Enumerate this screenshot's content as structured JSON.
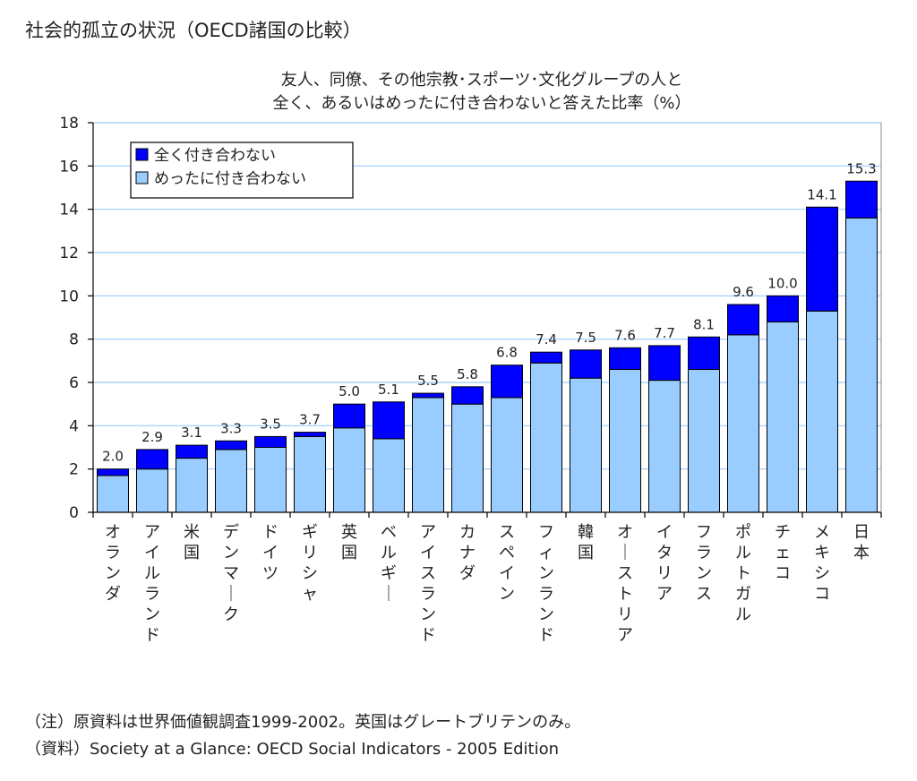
{
  "page": {
    "title": "社会的孤立の状況（OECD諸国の比較）",
    "notes": [
      "（注）原資料は世界価値観調査1999-2002。英国はグレートブリテンのみ。",
      "（資料）Society at a Glance: OECD Social Indicators - 2005 Edition"
    ]
  },
  "chart_data": {
    "type": "bar",
    "stacked": true,
    "title_lines": [
      "友人、同僚、その他宗教･スポーツ･文化グループの人と",
      "全く、あるいはめったに付き合わないと答えた比率（%）"
    ],
    "categories": [
      "オランダ",
      "アイルランド",
      "米国",
      "デンマーク",
      "ドイツ",
      "ギリシャ",
      "英国",
      "ベルギー",
      "アイスランド",
      "カナダ",
      "スペイン",
      "フィンランド",
      "韓国",
      "オーストリア",
      "イタリア",
      "フランス",
      "ポルトガル",
      "チェコ",
      "メキシコ",
      "日本"
    ],
    "series": [
      {
        "name": "めったに付き合わない",
        "color": "#99ccff",
        "values": [
          1.7,
          2.0,
          2.5,
          2.9,
          3.0,
          3.5,
          3.9,
          3.4,
          5.3,
          5.0,
          5.3,
          6.9,
          6.2,
          6.6,
          6.1,
          6.6,
          8.2,
          8.8,
          9.3,
          13.6
        ]
      },
      {
        "name": "全く付き合わない",
        "color": "#0000ff",
        "values": [
          0.3,
          0.9,
          0.6,
          0.4,
          0.5,
          0.2,
          1.1,
          1.7,
          0.2,
          0.8,
          1.5,
          0.5,
          1.3,
          1.0,
          1.6,
          1.5,
          1.4,
          1.2,
          4.8,
          1.7
        ]
      }
    ],
    "totals": [
      "2.0",
      "2.9",
      "3.1",
      "3.3",
      "3.5",
      "3.7",
      "5.0",
      "5.1",
      "5.5",
      "5.8",
      "6.8",
      "7.4",
      "7.5",
      "7.6",
      "7.7",
      "8.1",
      "9.6",
      "10.0",
      "14.1",
      "15.3"
    ],
    "ylim": [
      0,
      18
    ],
    "yticks": [
      "0",
      "2",
      "4",
      "6",
      "8",
      "10",
      "12",
      "14",
      "16",
      "18"
    ],
    "grid": true,
    "legend": {
      "placement": "top-left",
      "order": [
        "全く付き合わない",
        "めったに付き合わない"
      ]
    },
    "colors": {
      "grid": "#99ccff",
      "axis": "#000000",
      "bar_outline": "#000000"
    }
  }
}
